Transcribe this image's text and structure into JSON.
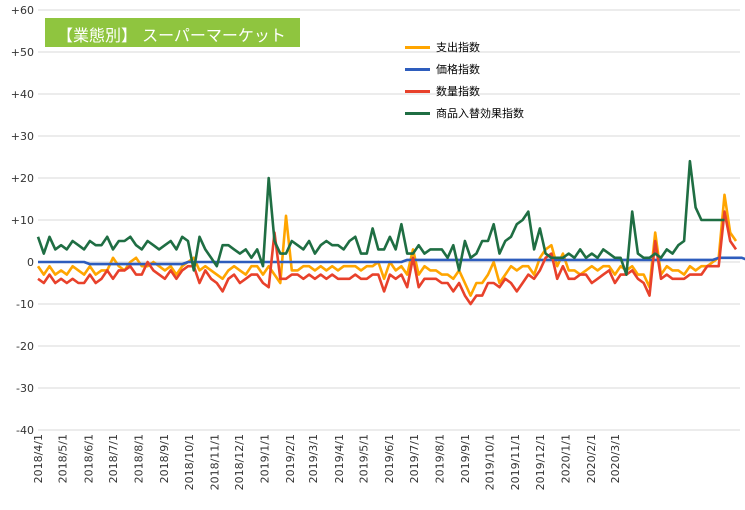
{
  "chart_data": {
    "type": "line",
    "title": "【業態別】 スーパーマーケット",
    "title_bg": "#8fc53f",
    "ylim": [
      -40,
      60
    ],
    "y_ticks": [
      60,
      50,
      40,
      30,
      20,
      10,
      0,
      -10,
      -20,
      -30,
      -40
    ],
    "y_tick_labels": [
      "+60",
      "+50",
      "+40",
      "+30",
      "+20",
      "+10",
      "0",
      "-10",
      "-20",
      "-30",
      "-40"
    ],
    "x_tick_labels": [
      "2018/4/1",
      "2018/5/1",
      "2018/6/1",
      "2018/7/1",
      "2018/8/1",
      "2018/9/1",
      "2018/10/1",
      "2018/11/1",
      "2018/12/1",
      "2019/1/1",
      "2019/2/1",
      "2019/3/1",
      "2019/4/1",
      "2019/5/1",
      "2019/6/1",
      "2019/7/1",
      "2019/8/1",
      "2019/9/1",
      "2019/10/1",
      "2019/11/1",
      "2019/12/1",
      "2020/1/1",
      "2020/2/1",
      "2020/3/1"
    ],
    "grid": "horizontal",
    "legend_position": "top-right",
    "weeks_start": "2018/4/1",
    "series": [
      {
        "name": "支出指数",
        "color": "#ffa500",
        "values": [
          -1,
          -3,
          -1,
          -3,
          -2,
          -3,
          -1,
          -2,
          -3,
          -1,
          -3,
          -2,
          -2,
          1,
          -1,
          -2,
          0,
          1,
          -1,
          -1,
          0,
          -1,
          -2,
          -1,
          -3,
          -1,
          0,
          1,
          -2,
          -1,
          -2,
          -3,
          -4,
          -2,
          -1,
          -2,
          -3,
          -1,
          -1,
          -3,
          -1,
          -3,
          -5,
          11,
          -2,
          -2,
          -1,
          -1,
          -2,
          -1,
          -2,
          -1,
          -2,
          -1,
          -1,
          -1,
          -2,
          -1,
          -1,
          0,
          -4,
          0,
          -2,
          -1,
          -3,
          3,
          -3,
          -1,
          -2,
          -2,
          -3,
          -3,
          -4,
          -2,
          -5,
          -8,
          -5,
          -5,
          -3,
          0,
          -5,
          -3,
          -1,
          -2,
          -1,
          -1,
          -3,
          1,
          3,
          4,
          -1,
          2,
          -2,
          -2,
          -3,
          -2,
          -1,
          -2,
          -1,
          -1,
          -3,
          -1,
          -2,
          -1,
          -3,
          -3,
          -6,
          7,
          -3,
          -1,
          -2,
          -2,
          -3,
          -1,
          -2,
          -1,
          -1,
          0,
          1,
          16,
          7,
          5
        ]
      },
      {
        "name": "価格指数",
        "color": "#2e5dbd",
        "values": [
          0,
          0,
          0,
          0,
          0,
          0,
          0,
          0,
          0,
          -0.5,
          -0.5,
          -0.5,
          -0.5,
          -0.5,
          -0.5,
          -0.5,
          -0.5,
          -0.5,
          -0.5,
          -0.5,
          -0.5,
          -0.5,
          -0.5,
          -0.5,
          -0.5,
          -0.5,
          0,
          0,
          0,
          0,
          0,
          0,
          0,
          0,
          0,
          0,
          0,
          0,
          0,
          0,
          0,
          0,
          0,
          0,
          0,
          0,
          0,
          0,
          0,
          0,
          0,
          0,
          0,
          0,
          0,
          0,
          0,
          0,
          0,
          0,
          0,
          0,
          0,
          0,
          0.5,
          0.5,
          0.5,
          0.5,
          0.5,
          0.5,
          0.5,
          0.5,
          0.5,
          0.5,
          0.5,
          0.5,
          0.5,
          0.5,
          0.5,
          0.5,
          0.5,
          0.5,
          0.5,
          0.5,
          0.5,
          0.5,
          0.5,
          0.5,
          0.5,
          0.5,
          0.5,
          0.5,
          0.5,
          0.5,
          0.5,
          0.5,
          0.5,
          0.5,
          0.5,
          0.5,
          0.5,
          0.5,
          0.5,
          0.5,
          0.5,
          0.5,
          0.5,
          0.5,
          0.5,
          0.5,
          0.5,
          0.5,
          0.5,
          0.5,
          0.5,
          0.5,
          0.5,
          0.5,
          1,
          1,
          1,
          1,
          1,
          0.5
        ]
      },
      {
        "name": "数量指数",
        "color": "#e8412b",
        "values": [
          -4,
          -5,
          -3,
          -5,
          -4,
          -5,
          -4,
          -5,
          -5,
          -3,
          -5,
          -4,
          -2,
          -4,
          -2,
          -2,
          -1,
          -3,
          -3,
          0,
          -2,
          -3,
          -4,
          -2,
          -4,
          -2,
          -1,
          -1,
          -5,
          -2,
          -4,
          -5,
          -7,
          -4,
          -3,
          -5,
          -4,
          -3,
          -3,
          -5,
          -6,
          7,
          -4,
          -4,
          -3,
          -3,
          -4,
          -3,
          -4,
          -3,
          -4,
          -3,
          -4,
          -4,
          -4,
          -3,
          -4,
          -4,
          -3,
          -3,
          -7,
          -3,
          -4,
          -3,
          -6,
          1,
          -6,
          -4,
          -4,
          -4,
          -5,
          -5,
          -7,
          -5,
          -8,
          -10,
          -8,
          -8,
          -5,
          -5,
          -6,
          -4,
          -5,
          -7,
          -5,
          -3,
          -4,
          -2,
          1,
          2,
          -4,
          -1,
          -4,
          -4,
          -3,
          -3,
          -5,
          -4,
          -3,
          -2,
          -5,
          -3,
          -3,
          -2,
          -4,
          -5,
          -8,
          5,
          -4,
          -3,
          -4,
          -4,
          -4,
          -3,
          -3,
          -3,
          -1,
          -1,
          -1,
          12,
          5,
          3
        ]
      },
      {
        "name": "商品入替効果指数",
        "color": "#1f6e43",
        "values": [
          6,
          2,
          6,
          3,
          4,
          3,
          5,
          4,
          3,
          5,
          4,
          4,
          6,
          3,
          5,
          5,
          6,
          4,
          3,
          5,
          4,
          3,
          4,
          5,
          3,
          6,
          5,
          -2,
          6,
          3,
          1,
          -1,
          4,
          4,
          3,
          2,
          3,
          1,
          3,
          -1,
          20,
          5,
          2,
          2,
          5,
          4,
          3,
          5,
          2,
          4,
          5,
          4,
          4,
          3,
          5,
          6,
          2,
          2,
          8,
          3,
          3,
          6,
          3,
          9,
          2,
          2,
          4,
          2,
          3,
          3,
          3,
          1,
          4,
          -2,
          5,
          1,
          2,
          5,
          5,
          9,
          2,
          5,
          6,
          9,
          10,
          12,
          3,
          8,
          2,
          1,
          1,
          1,
          2,
          1,
          3,
          1,
          2,
          1,
          3,
          2,
          1,
          1,
          -3,
          12,
          2,
          1,
          1,
          2,
          1,
          3,
          2,
          4,
          5,
          24,
          13,
          10,
          10,
          10,
          10,
          10
        ]
      }
    ]
  }
}
